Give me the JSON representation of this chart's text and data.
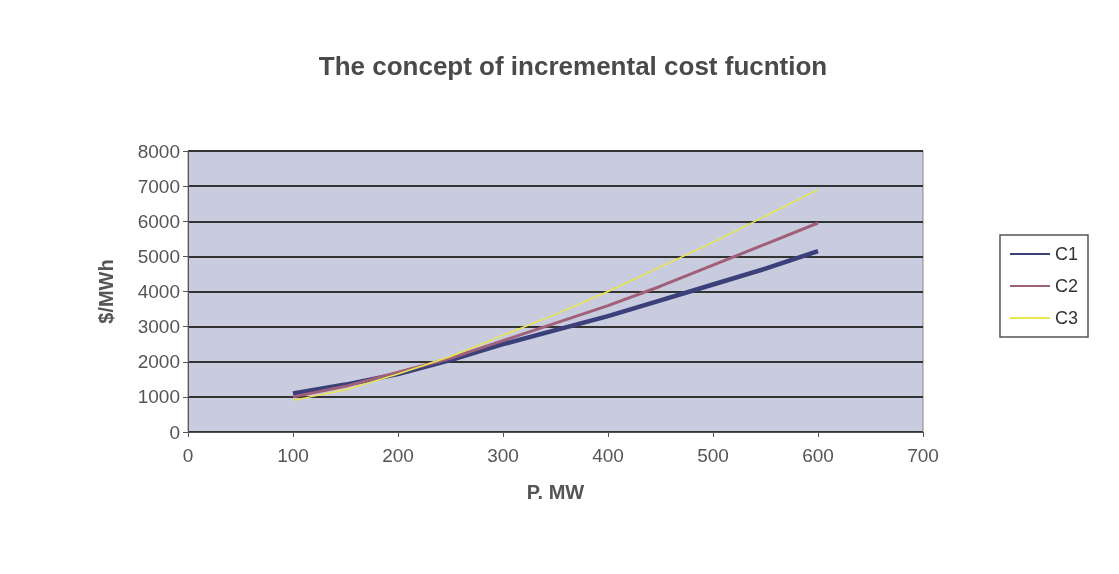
{
  "chart_data": {
    "type": "line",
    "title": "The concept of incremental cost fucntion",
    "xlabel": "P. MW",
    "ylabel": "$/MWh",
    "x": [
      100,
      150,
      200,
      250,
      300,
      350,
      400,
      450,
      500,
      550,
      600
    ],
    "series": [
      {
        "name": "C1",
        "color": "#3b3f7a",
        "values": [
          1100,
          1350,
          1650,
          2050,
          2500,
          2900,
          3300,
          3750,
          4200,
          4650,
          5150
        ]
      },
      {
        "name": "C2",
        "color": "#a0607a",
        "values": [
          1000,
          1300,
          1700,
          2100,
          2600,
          3100,
          3600,
          4150,
          4750,
          5350,
          5950
        ]
      },
      {
        "name": "C3",
        "color": "#e8e84a",
        "values": [
          900,
          1200,
          1650,
          2150,
          2750,
          3350,
          4000,
          4700,
          5400,
          6150,
          6900
        ]
      }
    ],
    "xlim": [
      0,
      700
    ],
    "xticks": [
      0,
      100,
      200,
      300,
      400,
      500,
      600,
      700
    ],
    "ylim": [
      0,
      8000
    ],
    "yticks": [
      0,
      1000,
      2000,
      3000,
      4000,
      5000,
      6000,
      7000,
      8000
    ],
    "grid": "y",
    "legend": "right",
    "marker": "none",
    "line_style": "solid"
  }
}
